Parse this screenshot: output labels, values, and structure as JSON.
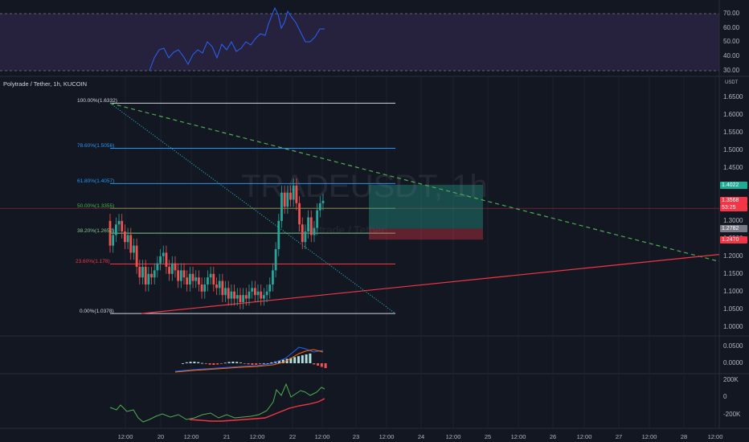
{
  "symbol_title": "Polytrade / Tether, 1h, KUCOIN",
  "currency": "USDT",
  "watermark_symbol": "TRADEUSDT, 1h",
  "watermark_name": "Polytrade / Tether",
  "rsi_axis": [
    "70.00",
    "60.00",
    "50.00",
    "40.00",
    "30.00"
  ],
  "price_axis": [
    "1.6500",
    "1.6000",
    "1.5500",
    "1.5000",
    "1.4500",
    "1.4000",
    "1.3500",
    "1.3000",
    "1.2500",
    "1.2000",
    "1.1500",
    "1.1000",
    "1.0500",
    "1.0000"
  ],
  "macd_axis": [
    "0.0500",
    "0.0000"
  ],
  "obv_axis": [
    "200K",
    "0",
    "-200K"
  ],
  "time_axis": [
    "12:00",
    "20",
    "12:00",
    "21",
    "12:00",
    "22",
    "12:00",
    "23",
    "12:00",
    "24",
    "12:00",
    "25",
    "12:00",
    "26",
    "12:00",
    "27",
    "12:00",
    "28",
    "12:00"
  ],
  "price_tags": [
    {
      "text": "1.4022",
      "color": "#22ab94"
    },
    {
      "text": "1.3568",
      "color": "#f23645"
    },
    {
      "text": "53:25",
      "color": "#f23645"
    },
    {
      "text": "1.2782",
      "color": "#787b86"
    },
    {
      "text": "1.2470",
      "color": "#f23645"
    }
  ],
  "fib_levels": [
    {
      "label": "100.00%(1.6332)",
      "color": "#d1d4dc"
    },
    {
      "label": "78.60%(1.5056)",
      "color": "#2196f3"
    },
    {
      "label": "61.80%(1.4057)",
      "color": "#2196f3"
    },
    {
      "label": "50.00%(1.3355)",
      "color": "#4caf50"
    },
    {
      "label": "38.20%(1.2652)",
      "color": "#81c784"
    },
    {
      "label": "23.60%(1.178)",
      "color": "#f23645"
    },
    {
      "label": "0.00%(1.0378)",
      "color": "#d1d4dc"
    }
  ],
  "colors": {
    "up": "#26a69a",
    "down": "#ef5350",
    "rsi": "#2962ff",
    "rsi_band": "#7e57c2",
    "trend_green": "#4caf50",
    "trend_red": "#f23645"
  }
}
